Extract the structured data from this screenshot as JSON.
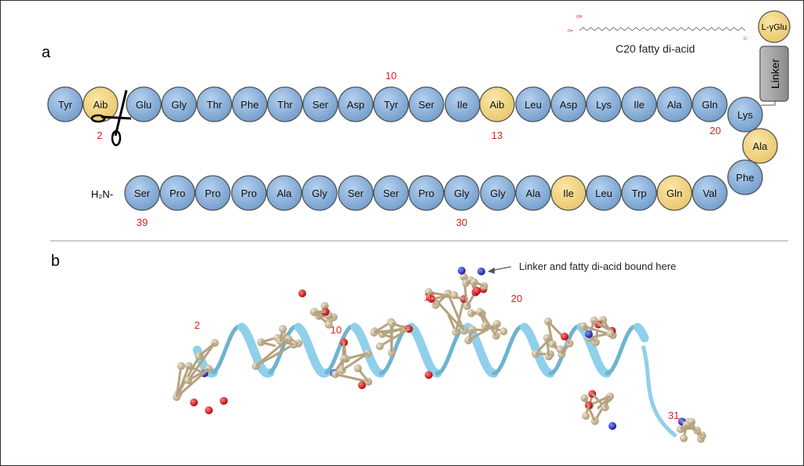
{
  "panel_a": {
    "label": "a",
    "top_row": [
      {
        "name": "Tyr"
      },
      {
        "name": "Aib",
        "highlight": true
      },
      {
        "name": "Glu"
      },
      {
        "name": "Gly"
      },
      {
        "name": "Thr"
      },
      {
        "name": "Phe"
      },
      {
        "name": "Thr"
      },
      {
        "name": "Ser"
      },
      {
        "name": "Asp"
      },
      {
        "name": "Tyr"
      },
      {
        "name": "Ser"
      },
      {
        "name": "Ile"
      },
      {
        "name": "Aib",
        "highlight": true
      },
      {
        "name": "Leu"
      },
      {
        "name": "Asp"
      },
      {
        "name": "Lys"
      },
      {
        "name": "Ile"
      },
      {
        "name": "Ala"
      },
      {
        "name": "Gln"
      }
    ],
    "turn": [
      {
        "name": "Lys"
      },
      {
        "name": "Ala",
        "highlight": true
      },
      {
        "name": "Phe"
      }
    ],
    "bottom_row": [
      {
        "name": "Ser"
      },
      {
        "name": "Pro"
      },
      {
        "name": "Pro"
      },
      {
        "name": "Pro"
      },
      {
        "name": "Ala"
      },
      {
        "name": "Gly"
      },
      {
        "name": "Ser"
      },
      {
        "name": "Ser"
      },
      {
        "name": "Pro"
      },
      {
        "name": "Gly"
      },
      {
        "name": "Gly"
      },
      {
        "name": "Ala"
      },
      {
        "name": "Ile",
        "highlight": true
      },
      {
        "name": "Leu"
      },
      {
        "name": "Trp"
      },
      {
        "name": "Gln",
        "highlight": true
      },
      {
        "name": "Val"
      }
    ],
    "n_terminus": "H₂N-",
    "position_labels": {
      "p2": "2",
      "p10": "10",
      "p13": "13",
      "p20": "20",
      "p30": "30",
      "p39": "39"
    },
    "linker_label": "Linker",
    "glu_label": "L-γGlu",
    "fatty_acid_label": "C20 fatty di-acid",
    "colors": {
      "residue": "#8db3da",
      "highlight": "#f5d98a",
      "number": "#e02020",
      "linker": "#9a9a9a"
    }
  },
  "panel_b": {
    "label": "b",
    "annotation": "Linker and fatty di-acid bound here",
    "position_labels": {
      "p2": "2",
      "p10": "10",
      "p16": "16",
      "p20": "20",
      "p31": "31"
    },
    "colors": {
      "ribbon": "#8fd0ea",
      "atom": "#cdb99a",
      "oxygen": "#d01010",
      "nitrogen": "#2030c0"
    }
  }
}
